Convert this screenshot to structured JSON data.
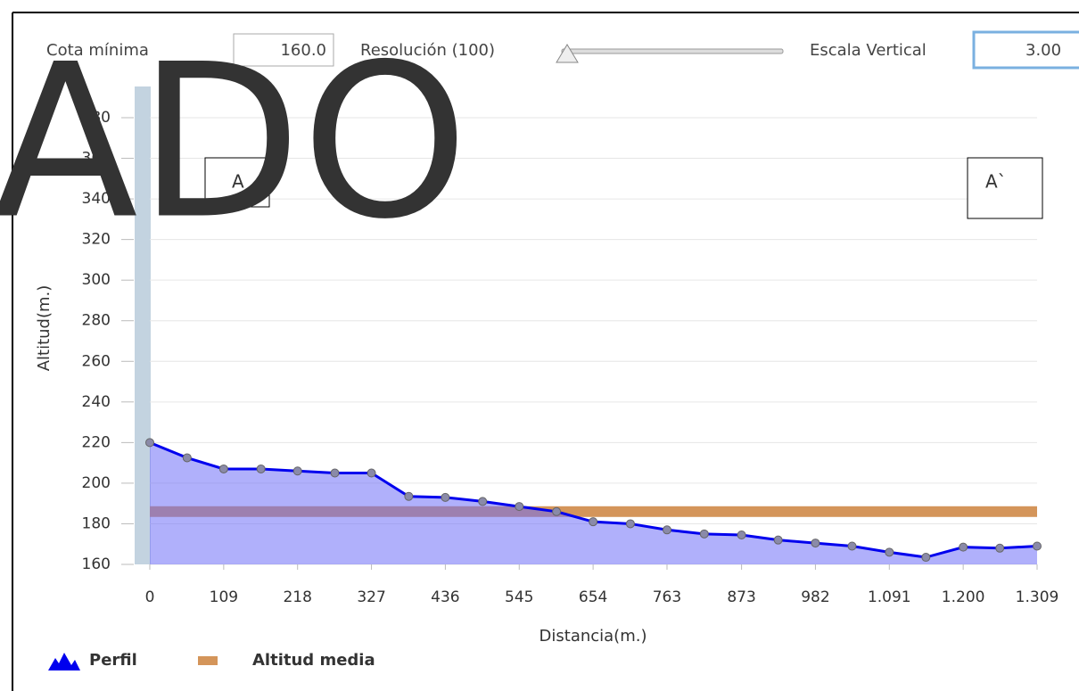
{
  "controls": {
    "min_label": "Cota mínima",
    "min_value": "160.0",
    "resolution_label": "Resolución (100)",
    "scale_label": "Escala Vertical",
    "scale_value": "3.00"
  },
  "overlay": {
    "text": "ADO",
    "start_label": "A",
    "end_label": "A`"
  },
  "chart_data": {
    "type": "area",
    "x_label": "Distancia(m.)",
    "y_label": "Altitud(m.)",
    "x": [
      0,
      55,
      109,
      164,
      218,
      273,
      327,
      382,
      436,
      491,
      545,
      600,
      654,
      709,
      763,
      818,
      873,
      927,
      982,
      1036,
      1091,
      1145,
      1200,
      1254,
      1309
    ],
    "series": [
      {
        "name": "Perfil",
        "color": "#0000ee",
        "values": [
          220,
          212.5,
          207,
          207,
          206,
          205,
          205,
          193.5,
          193,
          191,
          188.5,
          186,
          181,
          180,
          177,
          175,
          174.5,
          172,
          170.5,
          169,
          166,
          163.5,
          168.5,
          168,
          169
        ]
      },
      {
        "name": "Altitud media",
        "color": "#d4955a",
        "value": 186
      }
    ],
    "xlim": [
      0,
      1309
    ],
    "ylim": [
      160,
      380
    ],
    "xticks": [
      0,
      109,
      218,
      327,
      436,
      545,
      654,
      763,
      873,
      982,
      {
        "value": 1091,
        "label": "1.091"
      },
      {
        "value": 1200,
        "label": "1.200"
      },
      {
        "value": 1309,
        "label": "1.309"
      }
    ],
    "yticks": [
      160,
      180,
      200,
      220,
      240,
      260,
      280,
      300,
      320,
      340,
      360,
      380
    ],
    "grid": true,
    "legend": "bottom-left"
  }
}
